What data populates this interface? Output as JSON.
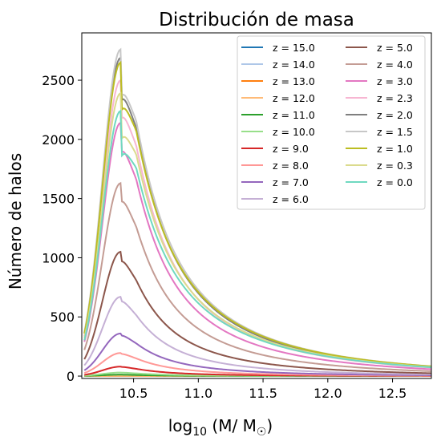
{
  "chart_data": {
    "type": "line",
    "title": "Distribución de masa",
    "xlabel": "log₁₀ (M/ M☉)",
    "ylabel": "Número de halos",
    "xlim": [
      10.1,
      12.8
    ],
    "ylim": [
      -20,
      2900
    ],
    "x_ticks": [
      "10.5",
      "11.0",
      "11.5",
      "12.0",
      "12.5"
    ],
    "x_tick_values": [
      10.5,
      11.0,
      11.5,
      12.0,
      12.5
    ],
    "y_ticks": [
      "0",
      "500",
      "1000",
      "1500",
      "2000",
      "2500"
    ],
    "y_tick_values": [
      0,
      500,
      1000,
      1500,
      2000,
      2500
    ],
    "grid": false,
    "legend_placement": "top-right",
    "legend_columns": 2,
    "peak_x": 10.4,
    "series": [
      {
        "name": "z = 15.0",
        "color": "#1f77b4",
        "peak": 0,
        "tail_frac": 0
      },
      {
        "name": "z = 14.0",
        "color": "#aec7e8",
        "peak": 0,
        "tail_frac": 0
      },
      {
        "name": "z = 13.0",
        "color": "#ff7f0e",
        "peak": 1,
        "tail_frac": 0.01
      },
      {
        "name": "z = 12.0",
        "color": "#ffbb78",
        "peak": 2,
        "tail_frac": 0.01
      },
      {
        "name": "z = 11.0",
        "color": "#2ca02c",
        "peak": 12,
        "tail_frac": 0.01
      },
      {
        "name": "z = 10.0",
        "color": "#98df8a",
        "peak": 30,
        "tail_frac": 0.02
      },
      {
        "name": "z = 9.0",
        "color": "#d62728",
        "peak": 80,
        "tail_frac": 0.03
      },
      {
        "name": "z = 8.0",
        "color": "#ff9896",
        "peak": 195,
        "tail_frac": 0.04
      },
      {
        "name": "z = 7.0",
        "color": "#9467bd",
        "peak": 360,
        "tail_frac": 0.05
      },
      {
        "name": "z = 6.0",
        "color": "#c5b0d5",
        "peak": 670,
        "tail_frac": 0.06
      },
      {
        "name": "z = 5.0",
        "color": "#8c564b",
        "peak": 1050,
        "tail_frac": 0.08
      },
      {
        "name": "z = 4.0",
        "color": "#c49c94",
        "peak": 1630,
        "tail_frac": 0.1
      },
      {
        "name": "z = 3.0",
        "color": "#e377c2",
        "peak": 2140,
        "tail_frac": 0.12
      },
      {
        "name": "z = 2.3",
        "color": "#f7b6d2",
        "peak": 2500,
        "tail_frac": 0.135
      },
      {
        "name": "z = 2.0",
        "color": "#7f7f7f",
        "peak": 2690,
        "tail_frac": 0.14
      },
      {
        "name": "z = 1.5",
        "color": "#c7c7c7",
        "peak": 2760,
        "tail_frac": 0.15
      },
      {
        "name": "z = 1.0",
        "color": "#bcbd22",
        "peak": 2650,
        "tail_frac": 0.16
      },
      {
        "name": "z = 0.3",
        "color": "#dbdb8d",
        "peak": 2390,
        "tail_frac": 0.17
      },
      {
        "name": "z = 0.0",
        "color": "#6fd9c0",
        "peak": 2240,
        "tail_frac": 0.18
      }
    ]
  }
}
